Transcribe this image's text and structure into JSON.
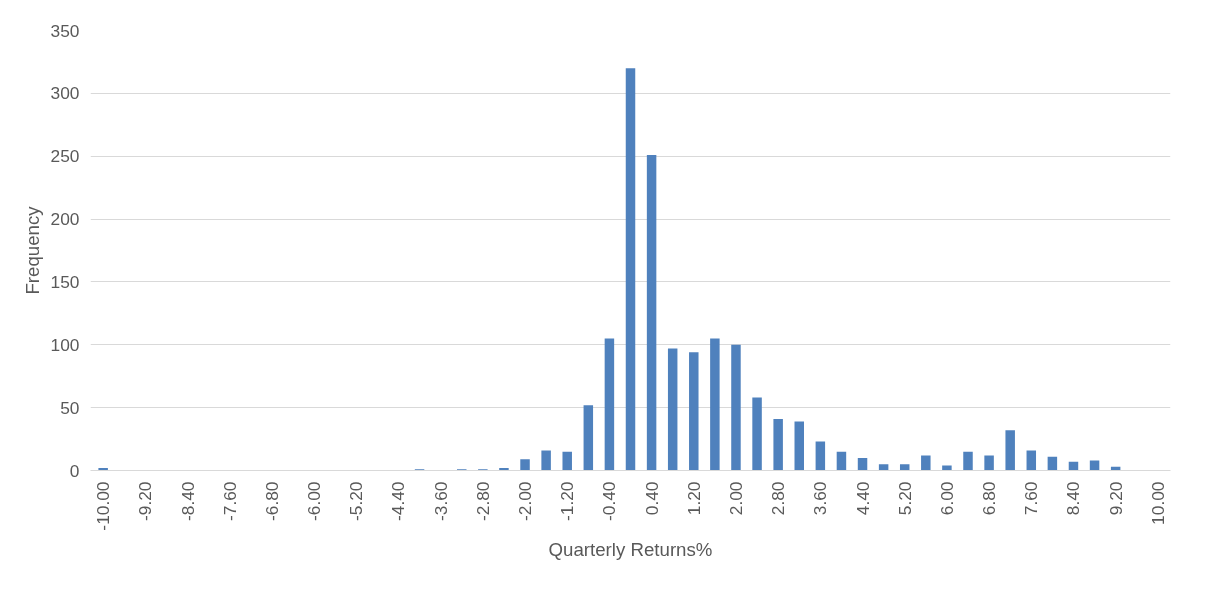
{
  "chart_data": {
    "type": "bar",
    "xlabel": "Quarterly Returns%",
    "ylabel": "Frequency",
    "categories": [
      "-10.00",
      null,
      "-9.20",
      null,
      "-8.40",
      null,
      "-7.60",
      null,
      "-6.80",
      null,
      "-6.00",
      null,
      "-5.20",
      null,
      "-4.40",
      null,
      "-3.60",
      null,
      "-2.80",
      null,
      "-2.00",
      null,
      "-1.20",
      null,
      "-0.40",
      null,
      "0.40",
      null,
      "1.20",
      null,
      "2.00",
      null,
      "2.80",
      null,
      "3.60",
      null,
      "4.40",
      null,
      "5.20",
      null,
      "6.00",
      null,
      "6.80",
      null,
      "7.60",
      null,
      "8.40",
      null,
      "9.20",
      null,
      "10.00"
    ],
    "values": [
      2,
      0,
      0,
      0,
      0,
      0,
      0,
      0,
      0,
      0,
      0,
      0,
      0,
      0,
      0,
      1,
      0,
      1,
      1,
      2,
      9,
      16,
      15,
      52,
      105,
      320,
      251,
      97,
      94,
      105,
      100,
      58,
      41,
      39,
      23,
      15,
      10,
      5,
      5,
      12,
      4,
      15,
      12,
      32,
      16,
      11,
      7,
      8,
      3,
      0,
      0
    ],
    "color": "#4f81bd",
    "ylim": [
      0,
      350
    ],
    "yticks": [
      0,
      50,
      100,
      150,
      200,
      250,
      300,
      350
    ],
    "grid": "y"
  }
}
